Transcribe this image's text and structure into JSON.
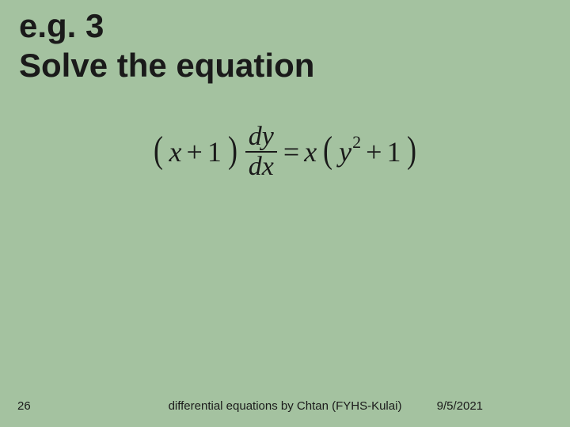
{
  "background_color": "#a4c2a0",
  "text_color": "#1a1a1a",
  "heading": {
    "line1": "e.g. 3",
    "line2": "Solve the equation",
    "fontsize": 42,
    "font_weight": "bold"
  },
  "equation": {
    "lhs_open": "(",
    "lhs_var": "x",
    "lhs_op": "+",
    "lhs_const": "1",
    "lhs_close": ")",
    "frac_num": "dy",
    "frac_den": "dx",
    "eq_sign": "=",
    "rhs_coef": "x",
    "rhs_open": "(",
    "rhs_var": "y",
    "rhs_exp": "2",
    "rhs_op": "+",
    "rhs_const": "1",
    "rhs_close": ")",
    "fontsize": 36,
    "font_family": "Times New Roman"
  },
  "footer": {
    "page_number": "26",
    "credit": "differential equations  by Chtan (FYHS-Kulai)",
    "date": "9/5/2021",
    "fontsize": 15
  }
}
